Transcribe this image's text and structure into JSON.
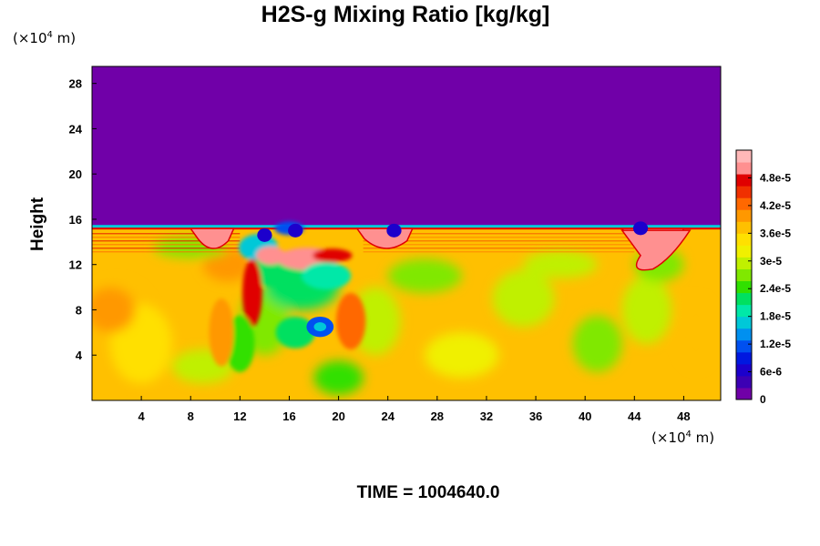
{
  "chart_data": {
    "type": "heatmap",
    "title": "H2S-g Mixing Ratio [kg/kg]",
    "ylabel": "Height",
    "xlabel": "",
    "x_unit_prefix": "(×10",
    "x_unit_exp": "4",
    "x_unit_suffix": " m)",
    "y_unit_prefix": "(×10",
    "y_unit_exp": "4",
    "y_unit_suffix": " m)",
    "xlim": [
      0,
      51
    ],
    "ylim": [
      0,
      29.5
    ],
    "x_ticks": [
      "4",
      "8",
      "12",
      "16",
      "20",
      "24",
      "28",
      "32",
      "36",
      "40",
      "44",
      "48"
    ],
    "y_ticks": [
      "4",
      "8",
      "12",
      "16",
      "20",
      "24",
      "28"
    ],
    "colorbar": {
      "range": [
        0,
        5.4e-05
      ],
      "tick_labels": [
        "0",
        "6e-6",
        "1.2e-5",
        "1.8e-5",
        "2.4e-5",
        "3e-5",
        "3.6e-5",
        "4.2e-5",
        "4.8e-5"
      ],
      "colors": [
        "#7000a8",
        "#3c00b4",
        "#1c00cc",
        "#0018e0",
        "#0050f0",
        "#0090f0",
        "#00c8d8",
        "#00e8a8",
        "#00e060",
        "#30e000",
        "#80e800",
        "#c0f000",
        "#f0f000",
        "#ffe000",
        "#ffc000",
        "#ff9800",
        "#ff6800",
        "#f03000",
        "#e00000",
        "#ff9090",
        "#ffb8b8"
      ]
    },
    "regions": {
      "upper_value": 0,
      "upper_top": 29.5,
      "upper_bottom": 15.5,
      "lower_dominant_value": 3.6e-05,
      "cap_value": 5e-05,
      "cap_range_x": [
        [
          8,
          11.5
        ],
        [
          21.5,
          26
        ],
        [
          43,
          48
        ]
      ],
      "core_value": 1.2e-05,
      "core_location": [
        18.5,
        6.5
      ]
    }
  },
  "time_label": "TIME = 1004640.0"
}
